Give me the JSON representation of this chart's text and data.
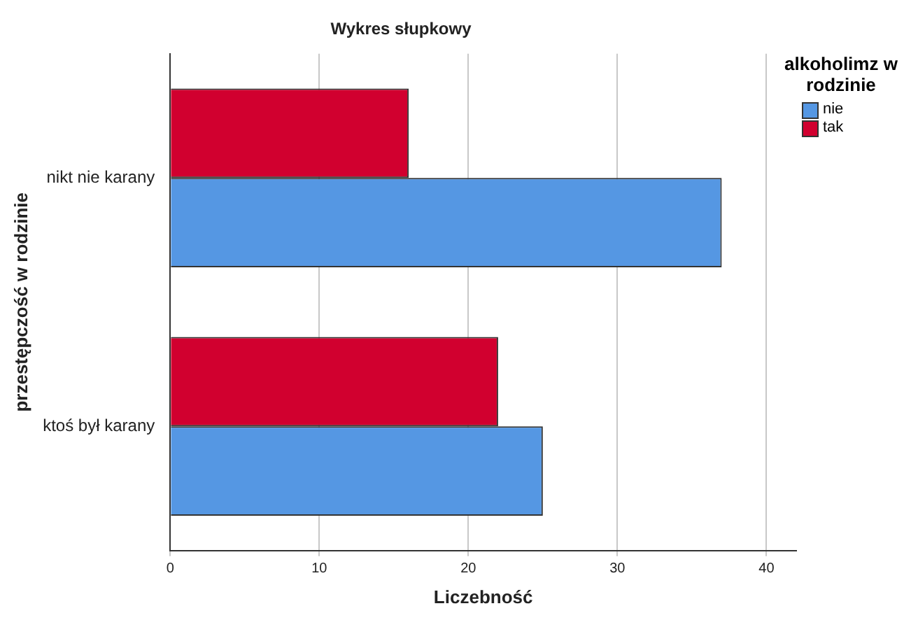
{
  "chart_data": {
    "type": "bar",
    "orientation": "horizontal",
    "title": "Wykres słupkowy",
    "xlabel": "Liczebność",
    "ylabel": "przestępczość w rodzinie",
    "legend_title": "alkoholimz w rodzinie",
    "categories": [
      "nikt nie karany",
      "ktoś był karany"
    ],
    "series": [
      {
        "name": "tak",
        "color": "#d1002f",
        "values": [
          16,
          22
        ]
      },
      {
        "name": "nie",
        "color": "#5597e3",
        "values": [
          37,
          25
        ]
      }
    ],
    "xlim": [
      0,
      42
    ],
    "xticks": [
      0,
      10,
      20,
      30,
      40
    ],
    "grid": "x",
    "legend": "top right"
  }
}
